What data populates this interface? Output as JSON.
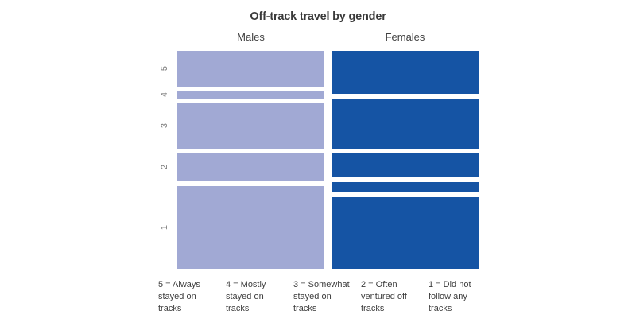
{
  "page": {
    "background_color": "#ffffff"
  },
  "chart_data": {
    "type": "bar",
    "variant": "mosaic (100% stacked vertical columns, one per gender)",
    "title": "Off-track travel by gender",
    "categories": [
      "Males",
      "Females"
    ],
    "row_scale": [
      "5",
      "4",
      "3",
      "2",
      "1"
    ],
    "series": [
      {
        "name": "Males",
        "color": "#a1a9d4",
        "values_pct": [
          17.8,
          3.8,
          22.6,
          14.2,
          41.5
        ]
      },
      {
        "name": "Females",
        "color": "#1554a4",
        "values_pct": [
          21.4,
          25.4,
          11.8,
          5.2,
          36.2
        ]
      }
    ],
    "ylim_pct": [
      0,
      100
    ],
    "grid": false,
    "y_tick_labels_rotated": true,
    "legend_position": "bottom",
    "legend": [
      {
        "code": "5",
        "label": "5 = Always\nstayed on\ntracks"
      },
      {
        "code": "4",
        "label": "4 = Mostly\nstayed on\ntracks"
      },
      {
        "code": "3",
        "label": "3 = Somewhat\nstayed on\ntracks"
      },
      {
        "code": "2",
        "label": "2 = Often\nventured off\ntracks"
      },
      {
        "code": "1",
        "label": "1 = Did not\nfollow any\ntracks"
      }
    ]
  },
  "colors": {
    "males_segment": "#a1a9d4",
    "females_segment": "#1554a4",
    "title_text": "#3a3a3a",
    "header_text": "#404040",
    "axis_label_text": "#7b7b7b",
    "legend_text": "#3d3d3d",
    "segment_gap": "#ffffff"
  }
}
